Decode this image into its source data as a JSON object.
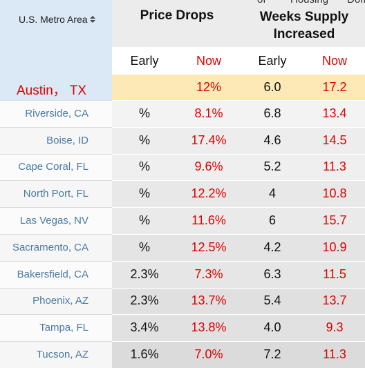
{
  "header": {
    "metro_label": "U.S. Metro Area",
    "clipped_top": [
      "of",
      "Housing",
      "Dom"
    ],
    "groups": [
      "Price Drops",
      "Weeks Supply Increased"
    ],
    "subheaders": [
      "Early",
      "Now",
      "Early",
      "Now"
    ]
  },
  "highlight": {
    "metro": "Austin， TX",
    "cells": [
      null,
      "12%",
      "6.0",
      "17.2"
    ]
  },
  "rows": [
    {
      "metro": "Riverside, CA",
      "cells": [
        "%",
        "8.1%",
        "6.8",
        "13.4"
      ]
    },
    {
      "metro": "Boise, ID",
      "cells": [
        "%",
        "17.4%",
        "4.6",
        "14.5"
      ]
    },
    {
      "metro": "Cape Coral, FL",
      "cells": [
        "%",
        "9.6%",
        "5.2",
        "11.3"
      ]
    },
    {
      "metro": "North Port, FL",
      "cells": [
        "%",
        "12.2%",
        "4",
        "10.8"
      ]
    },
    {
      "metro": "Las Vegas, NV",
      "cells": [
        "%",
        "11.6%",
        "6",
        "15.7"
      ]
    },
    {
      "metro": "Sacramento, CA",
      "cells": [
        "%",
        "12.5%",
        "4.2",
        "10.9"
      ]
    },
    {
      "metro": "Bakersfield, CA",
      "cells": [
        "2.3%",
        "7.3%",
        "6.3",
        "11.5"
      ]
    },
    {
      "metro": "Phoenix, AZ",
      "cells": [
        "2.3%",
        "13.7%",
        "5.4",
        "13.7"
      ]
    },
    {
      "metro": "Tampa, FL",
      "cells": [
        "3.4%",
        "13.8%",
        "4.0",
        "9.3"
      ]
    },
    {
      "metro": "Tucson, AZ",
      "cells": [
        "1.6%",
        "7.0%",
        "7.2",
        "11.3"
      ]
    }
  ]
}
